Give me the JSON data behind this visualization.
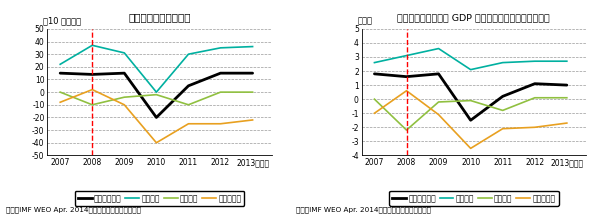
{
  "years": [
    2007,
    2008,
    2009,
    2010,
    2011,
    2012,
    2013
  ],
  "chart1": {
    "title": "サブサハラ・アフリカ",
    "ylabel": "（10 億ドル）",
    "ylim": [
      -50,
      50
    ],
    "yticks": [
      -50,
      -40,
      -30,
      -20,
      -10,
      0,
      10,
      20,
      30,
      40,
      50
    ],
    "private_capital": [
      15,
      14,
      15,
      -20,
      5,
      15,
      15
    ],
    "direct_investment": [
      22,
      37,
      31,
      0,
      30,
      35,
      36
    ],
    "portfolio_investment": [
      0,
      -10,
      -4,
      -2,
      -10,
      0,
      0
    ],
    "other_investment": [
      -8,
      2,
      -10,
      -40,
      -25,
      -25,
      -22
    ]
  },
  "chart2": {
    "title": "民間資本フロー：対 GDP 比（サブサハラ・アフリカ）",
    "ylabel": "（％）",
    "ylim": [
      -4,
      5
    ],
    "yticks": [
      -4,
      -3,
      -2,
      -1,
      0,
      1,
      2,
      3,
      4,
      5
    ],
    "private_capital": [
      1.8,
      1.6,
      1.8,
      -1.5,
      0.2,
      1.1,
      1.0
    ],
    "direct_investment": [
      2.6,
      3.1,
      3.6,
      2.1,
      2.6,
      2.7,
      2.7
    ],
    "portfolio_investment": [
      0,
      -2.2,
      -0.2,
      -0.1,
      -0.8,
      0.1,
      0.1
    ],
    "other_investment": [
      -1.0,
      0.6,
      -1.1,
      -3.5,
      -2.1,
      -2.0,
      -1.7
    ]
  },
  "colors": {
    "private_capital": "#000000",
    "direct_investment": "#00b0a0",
    "portfolio_investment": "#90c040",
    "other_investment": "#e8a020"
  },
  "vline_x": 2008,
  "source": "資料：IMF WEO Apr. 2014　データベースから作成。",
  "legend_labels": [
    "民間資本全体",
    "直接投資",
    "証券投資",
    "その他投資"
  ],
  "year_label": "（年）"
}
